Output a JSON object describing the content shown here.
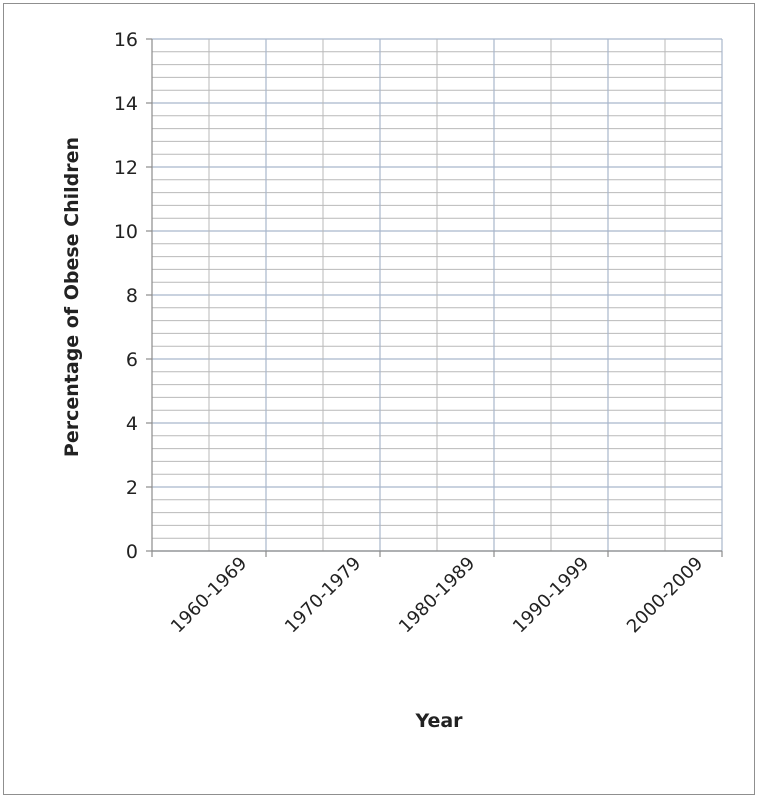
{
  "chart_data": {
    "type": "bar",
    "title": "",
    "xlabel": "Year",
    "ylabel": "Percentage of Obese Children",
    "categories": [
      "1960-1969",
      "1970-1979",
      "1980-1989",
      "1990-1999",
      "2000-2009"
    ],
    "series": [],
    "ylim": [
      0,
      16
    ],
    "y_major_ticks": [
      0,
      2,
      4,
      6,
      8,
      10,
      12,
      14,
      16
    ],
    "y_minor_step": 0.4,
    "x_minor_per_category": 2,
    "grid": true,
    "legend": "none",
    "colors": {
      "major_grid": "#a9b7cc",
      "minor_grid": "#b9b9b9",
      "axis": "#8c8c8c",
      "text": "#222222"
    }
  }
}
